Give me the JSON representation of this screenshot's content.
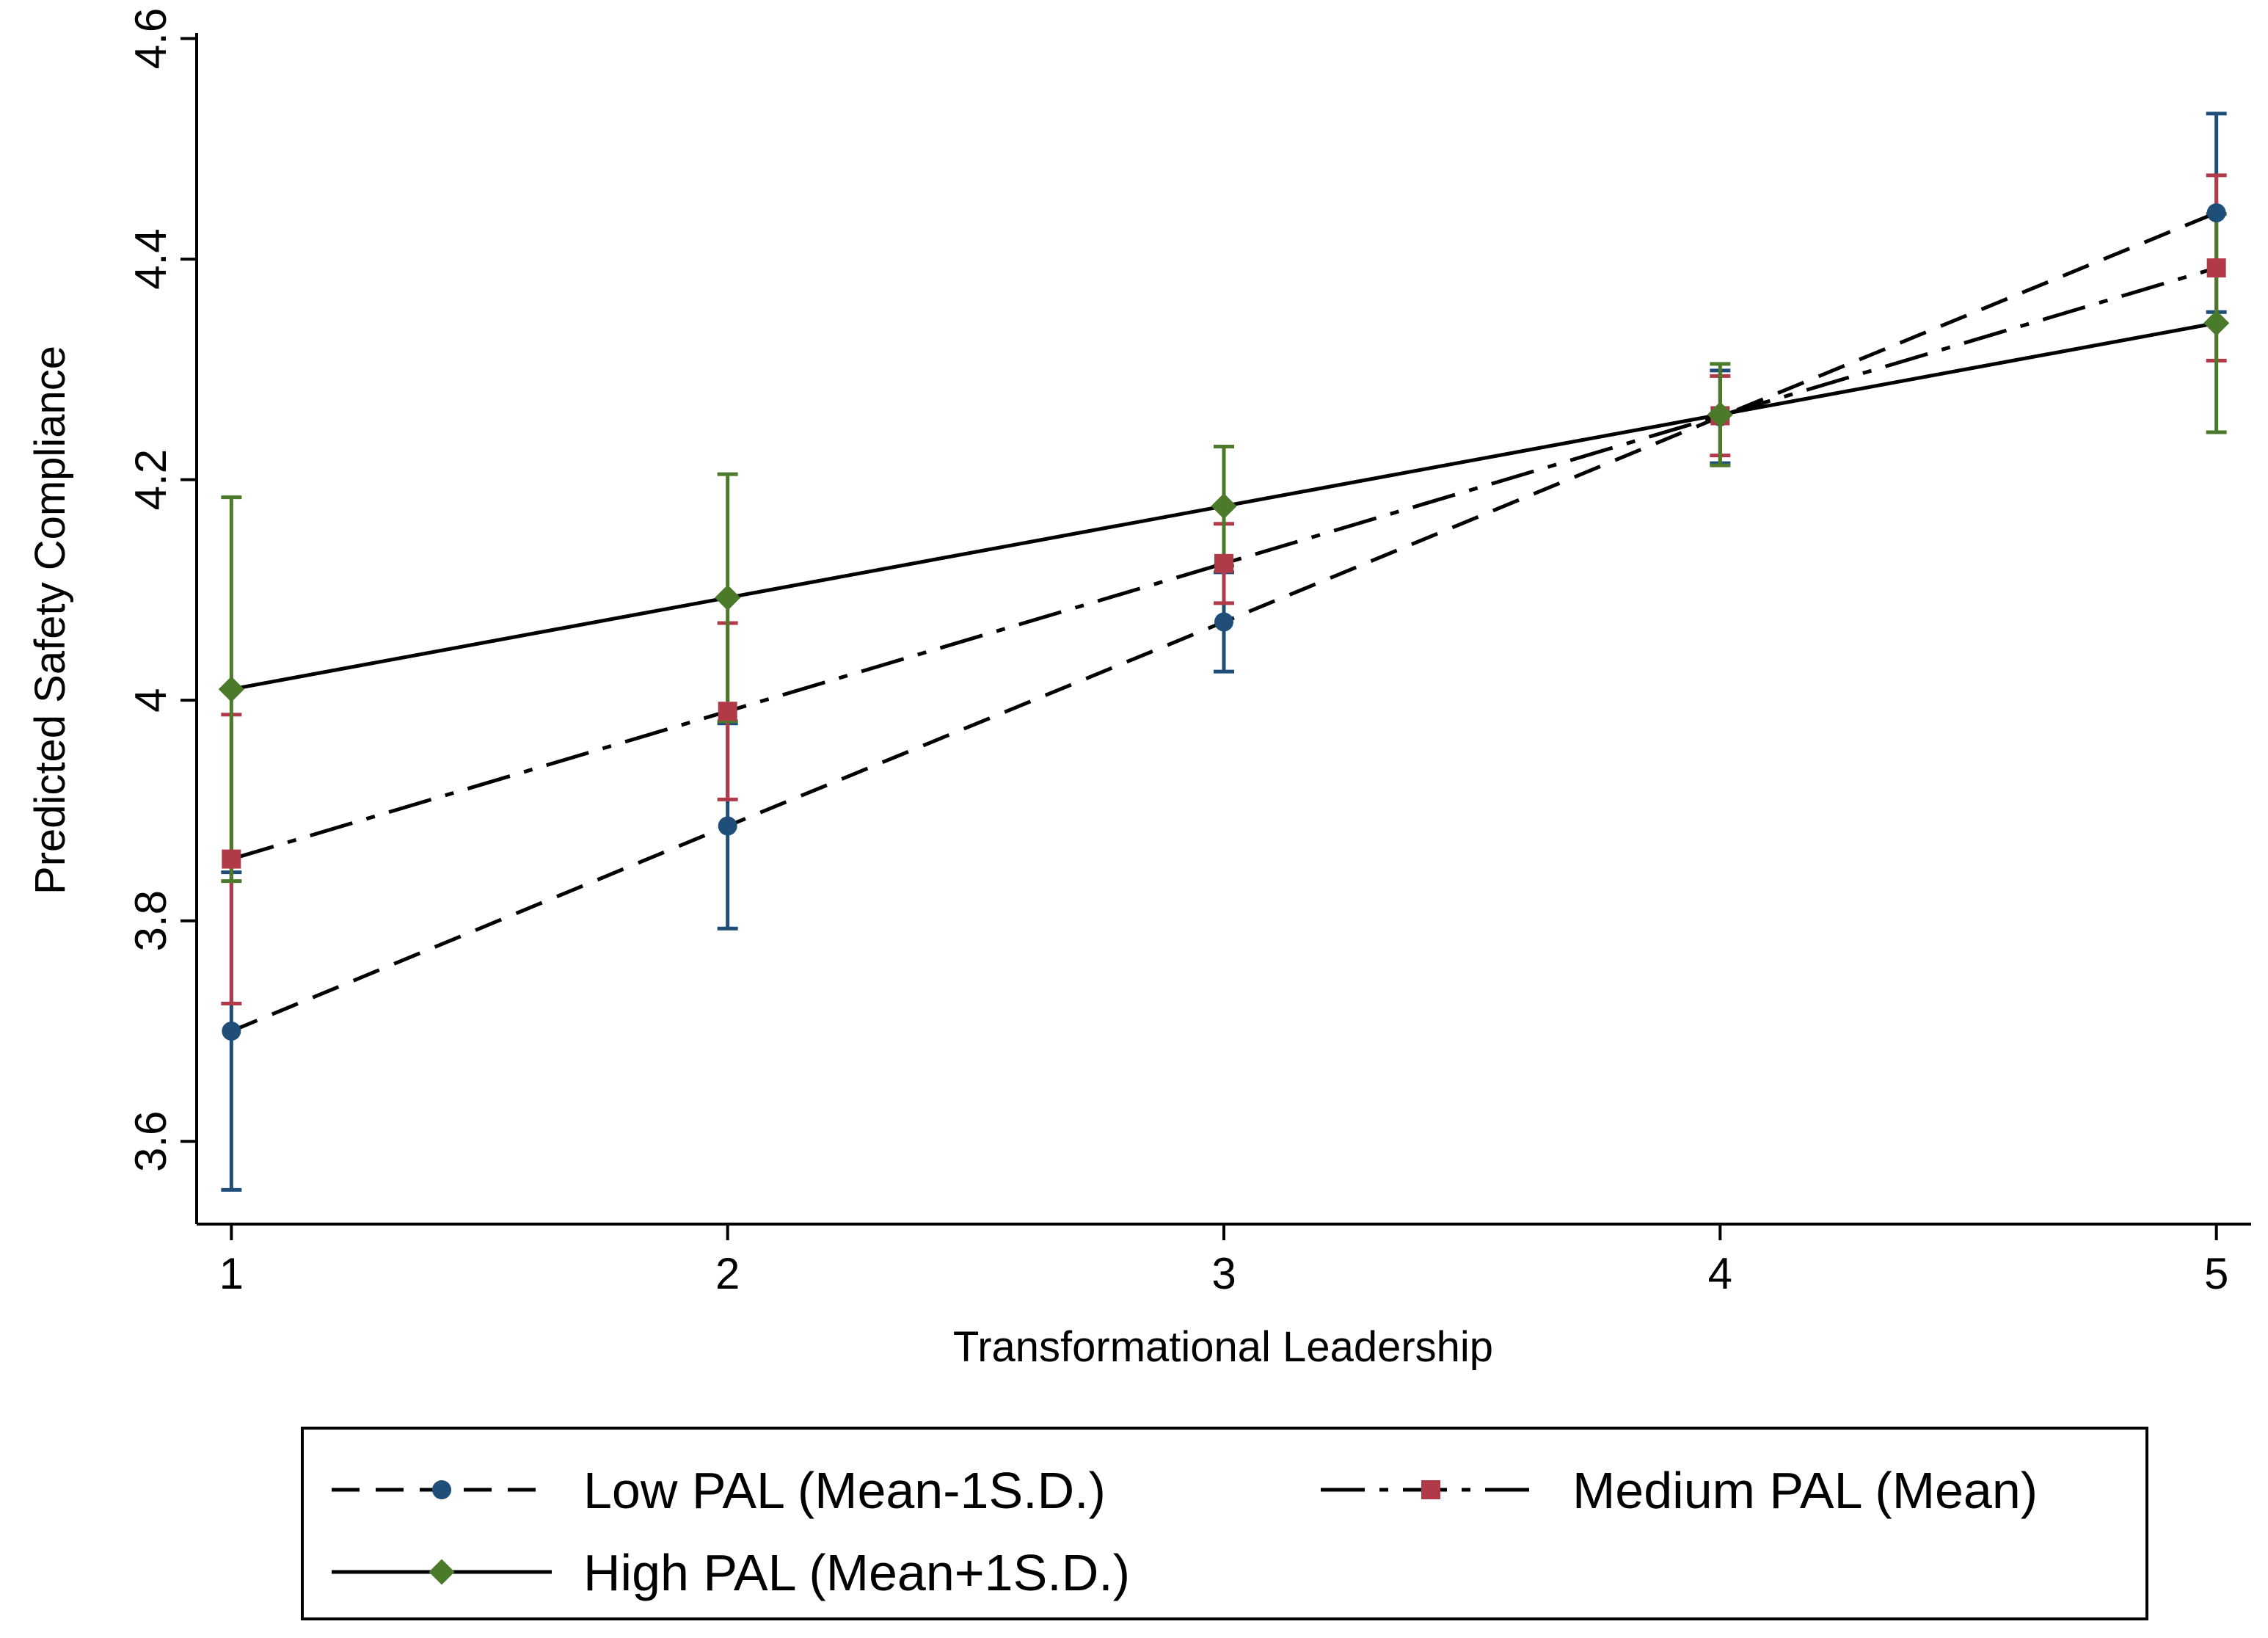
{
  "chart_data": {
    "type": "line",
    "title": "",
    "xlabel": "Transformational Leadership",
    "ylabel": "Predicted Safety Compliance",
    "x": [
      1,
      2,
      3,
      4,
      5
    ],
    "xlim": [
      0.93,
      5.07
    ],
    "ylim": [
      3.525,
      4.605
    ],
    "x_ticks": [
      "1",
      "2",
      "3",
      "4",
      "5"
    ],
    "y_ticks": [
      "3.6",
      "3.8",
      "4",
      "4.2",
      "4.4",
      "4.6"
    ],
    "grid": false,
    "legend_position": "bottom",
    "series": [
      {
        "name": "Low PAL (Mean-1S.D.)",
        "color": "#1f4e79",
        "line_style": "dash",
        "marker": "circle",
        "values": [
          3.7,
          3.886,
          4.071,
          4.257,
          4.442
        ],
        "ci_lower": [
          3.556,
          3.793,
          4.026,
          4.215,
          4.352
        ],
        "ci_upper": [
          3.844,
          3.979,
          4.116,
          4.299,
          4.532
        ]
      },
      {
        "name": "Medium PAL (Mean)",
        "color": "#b03a48",
        "line_style": "dashdot",
        "marker": "square",
        "values": [
          3.856,
          3.99,
          4.124,
          4.258,
          4.392
        ],
        "ci_lower": [
          3.725,
          3.91,
          4.088,
          4.222,
          4.308
        ],
        "ci_upper": [
          3.987,
          4.07,
          4.16,
          4.294,
          4.476
        ]
      },
      {
        "name": "High PAL (Mean+1S.D.)",
        "color": "#4a7a2a",
        "line_style": "solid",
        "marker": "diamond",
        "values": [
          4.01,
          4.093,
          4.176,
          4.259,
          4.342
        ],
        "ci_lower": [
          3.836,
          3.981,
          4.122,
          4.213,
          4.243
        ],
        "ci_upper": [
          4.184,
          4.205,
          4.23,
          4.305,
          4.441
        ]
      }
    ]
  }
}
